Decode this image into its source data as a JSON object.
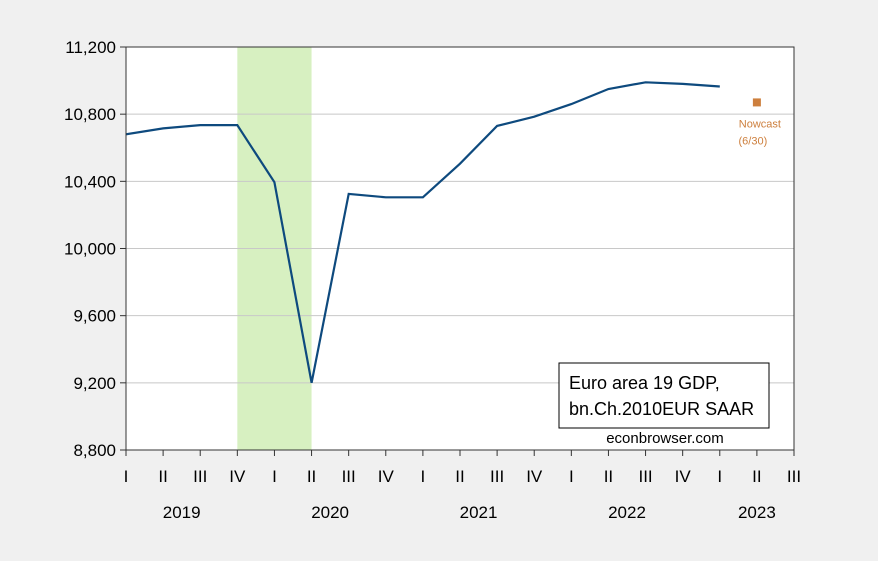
{
  "chart_data": {
    "type": "line",
    "x_quarters": [
      "2019Q1",
      "2019Q2",
      "2019Q3",
      "2019Q4",
      "2020Q1",
      "2020Q2",
      "2020Q3",
      "2020Q4",
      "2021Q1",
      "2021Q2",
      "2021Q3",
      "2021Q4",
      "2022Q1",
      "2022Q2",
      "2022Q3",
      "2022Q4",
      "2023Q1"
    ],
    "tick_labels": [
      "I",
      "II",
      "III",
      "IV",
      "I",
      "II",
      "III",
      "IV",
      "I",
      "II",
      "III",
      "IV",
      "I",
      "II",
      "III",
      "IV",
      "I",
      "II",
      "III"
    ],
    "year_labels": [
      "2019",
      "2020",
      "2021",
      "2022",
      "2023"
    ],
    "series": [
      {
        "values": [
          10680,
          10715,
          10735,
          10735,
          10395,
          9200,
          10325,
          10305,
          10305,
          10505,
          10730,
          10785,
          10860,
          10950,
          10990,
          10980,
          10965
        ],
        "color": "#0e4a7e"
      }
    ],
    "nowcast": {
      "quarter": "2023Q2",
      "value": 10870,
      "label": "Nowcast",
      "sublabel": "(6/30)",
      "color": "#cd7f3d"
    },
    "recession_shading": {
      "start": "2019Q4",
      "end": "2020Q2",
      "color": "#d7f0c1"
    },
    "yticks": [
      8800,
      9200,
      9600,
      10000,
      10400,
      10800,
      11200
    ],
    "ytick_labels": [
      "8,800",
      "9,200",
      "9,600",
      "10,000",
      "10,400",
      "10,800",
      "11,200"
    ],
    "ylim": [
      8800,
      11200
    ],
    "grid": true,
    "legend": {
      "line1": "Euro area 19 GDP,",
      "line2": "bn.Ch.2010EUR SAAR",
      "placement": "bottom-right"
    },
    "credit": "econbrowser.com"
  }
}
